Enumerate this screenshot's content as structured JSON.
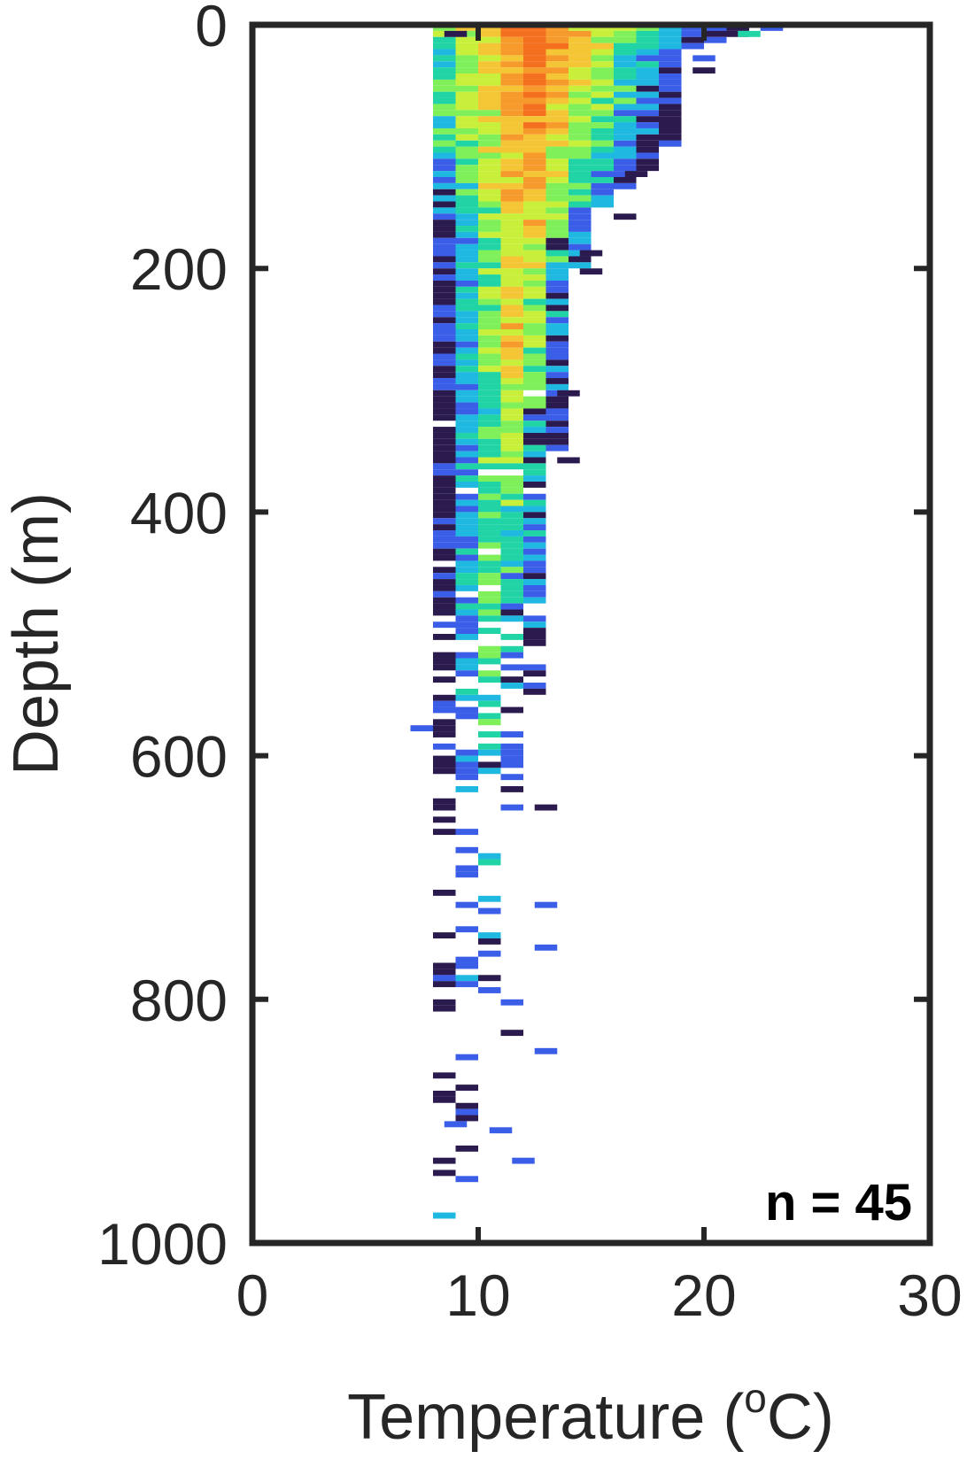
{
  "chart_data": {
    "type": "heatmap",
    "title": "",
    "xlabel": "Temperature (",
    "xlabel_sup": "o",
    "xlabel_suffix": "C)",
    "ylabel": "Depth (m)",
    "xlim": [
      0,
      30
    ],
    "ylim": [
      0,
      1000
    ],
    "y_reversed": true,
    "xticks": [
      0,
      10,
      20,
      30
    ],
    "yticks": [
      0,
      200,
      400,
      600,
      800,
      1000
    ],
    "grid": false,
    "annotation": "n = 45",
    "annotation_position": "bottom-right",
    "bin_width_x": 1,
    "bin_height_y": 5,
    "colormap": [
      "#2b1a4e",
      "#3b5ee8",
      "#1fb8e0",
      "#21d4a6",
      "#7ff05a",
      "#c8f03a",
      "#f4c534",
      "#f79a2c",
      "#f46f1e"
    ],
    "profile": {
      "depths": [
        0,
        20,
        50,
        100,
        150,
        200,
        250,
        300,
        350,
        400,
        450,
        500,
        550,
        600,
        650,
        700,
        750,
        800,
        850,
        900,
        950,
        1000
      ],
      "x_min": [
        8.5,
        8.5,
        8.8,
        8.8,
        8.8,
        8.8,
        8.8,
        8.8,
        8.8,
        8.8,
        8.8,
        8.8,
        8.8,
        8.8,
        8.8,
        8.8,
        8.8,
        8.8,
        8.8,
        8.8,
        8.8,
        8.8
      ],
      "x_max": [
        22,
        19,
        19,
        18,
        15,
        14,
        14,
        13.5,
        13,
        13,
        12.5,
        12.5,
        12,
        11.5,
        11,
        11,
        10.5,
        10.5,
        10,
        10,
        10,
        10
      ],
      "hot_center": [
        12.5,
        12.5,
        12.3,
        12.2,
        12,
        11.8,
        11.5,
        11.5,
        11.2,
        11,
        10.8,
        10.8,
        10.5,
        10.5,
        10.3,
        10.3,
        10,
        10,
        10,
        10,
        10,
        10
      ],
      "peak_level": [
        8,
        8,
        8,
        7,
        7,
        6,
        6,
        5,
        5,
        4,
        4,
        4,
        3,
        3,
        3,
        2,
        2,
        2,
        1,
        1,
        1,
        1
      ],
      "fill_prob": [
        1,
        1,
        1,
        1,
        1,
        1,
        1,
        0.95,
        0.95,
        0.95,
        0.85,
        0.75,
        0.6,
        0.5,
        0.4,
        0.3,
        0.25,
        0.2,
        0.15,
        0.12,
        0.08,
        0.05
      ]
    },
    "sparse_marks": [
      {
        "x": 8.5,
        "y": 5,
        "level": 0
      },
      {
        "x": 20,
        "y": 0,
        "level": 1
      },
      {
        "x": 21.5,
        "y": 5,
        "level": 3
      },
      {
        "x": 22.5,
        "y": 0,
        "level": 1
      },
      {
        "x": 19.5,
        "y": 25,
        "level": 1
      },
      {
        "x": 19.5,
        "y": 35,
        "level": 0
      },
      {
        "x": 18,
        "y": 80,
        "level": 0
      },
      {
        "x": 18,
        "y": 95,
        "level": 1
      },
      {
        "x": 16.5,
        "y": 120,
        "level": 0
      },
      {
        "x": 16,
        "y": 155,
        "level": 0
      },
      {
        "x": 14.5,
        "y": 185,
        "level": 0
      },
      {
        "x": 14.5,
        "y": 200,
        "level": 0
      },
      {
        "x": 8,
        "y": 185,
        "level": 1
      },
      {
        "x": 13.5,
        "y": 300,
        "level": 0
      },
      {
        "x": 13.5,
        "y": 355,
        "level": 0
      },
      {
        "x": 7,
        "y": 575,
        "level": 1
      },
      {
        "x": 8,
        "y": 465,
        "level": 1
      },
      {
        "x": 12.5,
        "y": 640,
        "level": 0
      },
      {
        "x": 12.5,
        "y": 720,
        "level": 1
      },
      {
        "x": 12.5,
        "y": 755,
        "level": 1
      },
      {
        "x": 8,
        "y": 780,
        "level": 1
      },
      {
        "x": 11,
        "y": 800,
        "level": 1
      },
      {
        "x": 11,
        "y": 825,
        "level": 0
      },
      {
        "x": 12.5,
        "y": 840,
        "level": 1
      },
      {
        "x": 8.5,
        "y": 900,
        "level": 1
      },
      {
        "x": 10.5,
        "y": 905,
        "level": 1
      },
      {
        "x": 11.5,
        "y": 930,
        "level": 1
      },
      {
        "x": 8,
        "y": 975,
        "level": 2
      }
    ]
  }
}
